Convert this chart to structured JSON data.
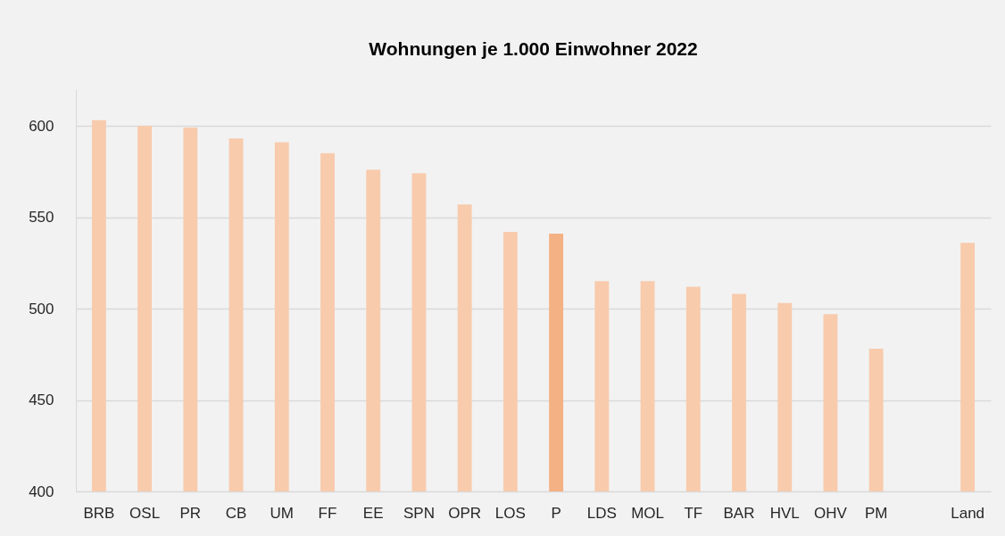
{
  "chart_data": {
    "type": "bar",
    "title": "Wohnungen je 1.000 Einwohner 2022",
    "categories": [
      "BRB",
      "OSL",
      "PR",
      "CB",
      "UM",
      "FF",
      "EE",
      "SPN",
      "OPR",
      "LOS",
      "P",
      "LDS",
      "MOL",
      "TF",
      "BAR",
      "HVL",
      "OHV",
      "PM",
      null,
      "Land"
    ],
    "values": [
      603,
      600,
      599,
      593,
      591,
      585,
      576,
      574,
      557,
      542,
      541,
      515,
      515,
      512,
      508,
      503,
      497,
      478,
      null,
      536
    ],
    "colors": [
      "#f8cbad",
      "#f8cbad",
      "#f8cbad",
      "#f8cbad",
      "#f8cbad",
      "#f8cbad",
      "#f8cbad",
      "#f8cbad",
      "#f8cbad",
      "#f8cbad",
      "#f4b183",
      "#f8cbad",
      "#f8cbad",
      "#f8cbad",
      "#f8cbad",
      "#f8cbad",
      "#f8cbad",
      "#f8cbad",
      "#f8cbad",
      "#f8cbad"
    ],
    "ylim": [
      400,
      620
    ],
    "yticks": [
      400,
      450,
      500,
      550,
      600
    ],
    "grid": "y"
  }
}
